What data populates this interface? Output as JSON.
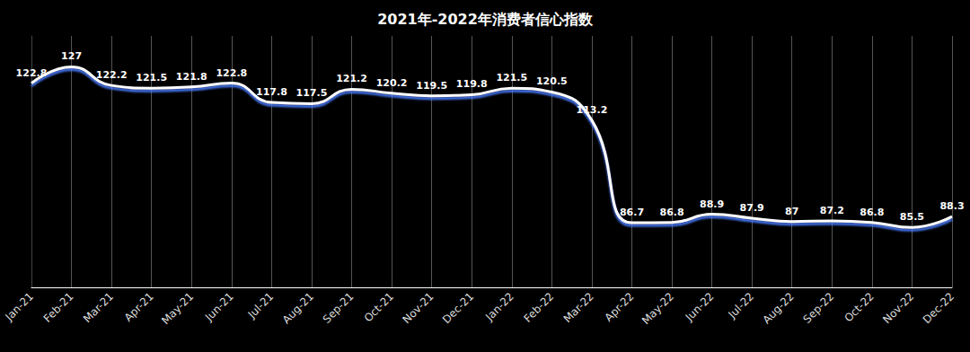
{
  "chart_data": {
    "type": "line",
    "title": "2021年-2022年消费者信心指数",
    "categories": [
      "Jan-21",
      "Feb-21",
      "Mar-21",
      "Apr-21",
      "May-21",
      "Jun-21",
      "Jul-21",
      "Aug-21",
      "Sep-21",
      "Oct-21",
      "Nov-21",
      "Dec-21",
      "Jan-22",
      "Feb-22",
      "Mar-22",
      "Apr-22",
      "May-22",
      "Jun-22",
      "Jul-22",
      "Aug-22",
      "Sep-22",
      "Oct-22",
      "Nov-22",
      "Dec-22"
    ],
    "values": [
      122.8,
      127,
      122.2,
      121.5,
      121.8,
      122.8,
      117.8,
      117.5,
      121.2,
      120.2,
      119.5,
      119.8,
      121.5,
      120.5,
      113.2,
      86.7,
      86.8,
      88.9,
      87.9,
      87,
      87.2,
      86.8,
      85.5,
      88.3
    ],
    "color": "#ffffff",
    "ylim": [
      70,
      135
    ],
    "grid": true,
    "data_labels": true,
    "tick_labels": "x",
    "line_style": "smooth"
  }
}
